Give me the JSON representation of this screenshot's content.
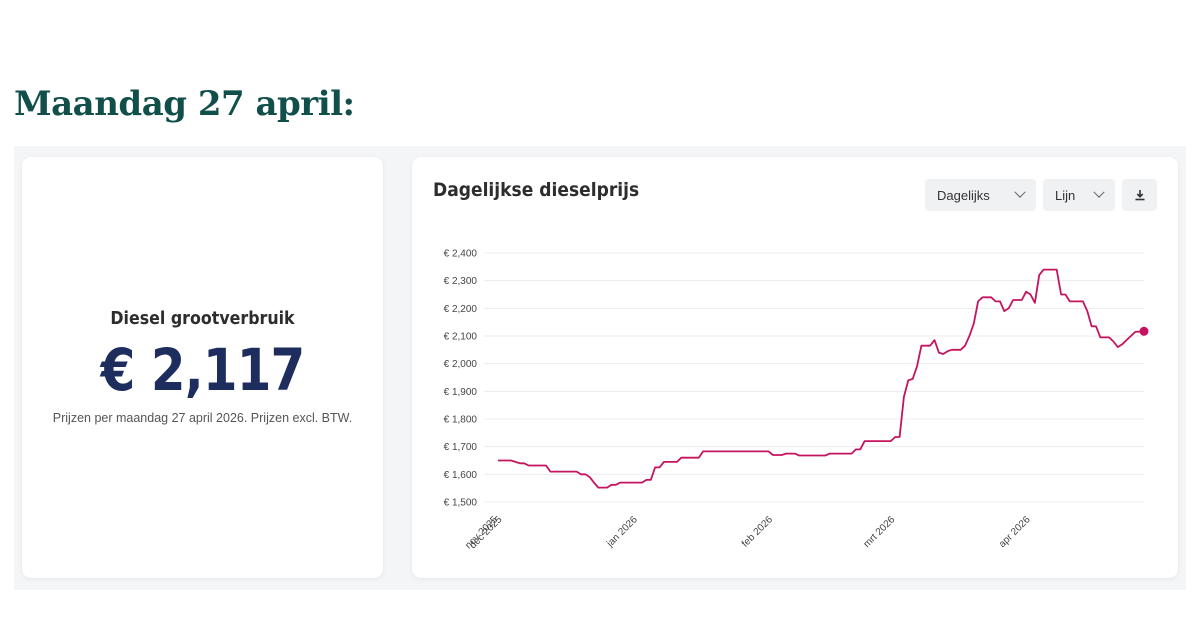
{
  "heading": "Maandag 27 april:",
  "kpi": {
    "label": "Diesel grootverbruik",
    "value": "€ 2,117",
    "note": "Prijzen per maandag 27 april 2026. Prijzen excl. BTW."
  },
  "controls": {
    "period": "Dagelijks",
    "chart_type": "Lijn",
    "download_icon": "download-icon"
  },
  "colors": {
    "heading": "#114f4a",
    "kpi": "#1d2d5e",
    "line": "#c5145f"
  },
  "chart_data": {
    "type": "line",
    "title": "Dagelijkse dieselprijs",
    "xlabel": "",
    "ylabel": "",
    "ylim": [
      1500,
      2400
    ],
    "yticks": [
      2400,
      2300,
      2200,
      2100,
      2000,
      1900,
      1800,
      1700,
      1600,
      1500
    ],
    "ytick_labels": [
      "€ 2,400",
      "€ 2,300",
      "€ 2,200",
      "€ 2,100",
      "€ 2,000",
      "€ 1,900",
      "€ 1,800",
      "€ 1,700",
      "€ 1,600",
      "€ 1,500"
    ],
    "xticks": [
      {
        "label": "nov 2025",
        "date": "2025-11-30"
      },
      {
        "label": "dec 2025",
        "date": "2025-12-01"
      },
      {
        "label": "jan 2026",
        "date": "2026-01-01"
      },
      {
        "label": "feb 2026",
        "date": "2026-02-01"
      },
      {
        "label": "mrt 2026",
        "date": "2026-03-01"
      },
      {
        "label": "apr 2026",
        "date": "2026-04-01"
      }
    ],
    "grid": true,
    "legend": "none",
    "series": [
      {
        "points": [
          [
            "2025-11-30",
            1650
          ],
          [
            "2025-12-01",
            1650
          ],
          [
            "2025-12-03",
            1650
          ],
          [
            "2025-12-04",
            1645
          ],
          [
            "2025-12-05",
            1640
          ],
          [
            "2025-12-06",
            1640
          ],
          [
            "2025-12-07",
            1632
          ],
          [
            "2025-12-11",
            1632
          ],
          [
            "2025-12-12",
            1610
          ],
          [
            "2025-12-18",
            1610
          ],
          [
            "2025-12-19",
            1600
          ],
          [
            "2025-12-20",
            1600
          ],
          [
            "2025-12-21",
            1590
          ],
          [
            "2025-12-22",
            1570
          ],
          [
            "2025-12-23",
            1552
          ],
          [
            "2025-12-25",
            1552
          ],
          [
            "2025-12-26",
            1562
          ],
          [
            "2025-12-27",
            1562
          ],
          [
            "2025-12-28",
            1570
          ],
          [
            "2026-01-02",
            1570
          ],
          [
            "2026-01-03",
            1580
          ],
          [
            "2026-01-04",
            1580
          ],
          [
            "2026-01-05",
            1625
          ],
          [
            "2026-01-06",
            1625
          ],
          [
            "2026-01-07",
            1645
          ],
          [
            "2026-01-10",
            1645
          ],
          [
            "2026-01-11",
            1660
          ],
          [
            "2026-01-15",
            1660
          ],
          [
            "2026-01-16",
            1683
          ],
          [
            "2026-01-31",
            1683
          ],
          [
            "2026-02-01",
            1670
          ],
          [
            "2026-02-03",
            1670
          ],
          [
            "2026-02-04",
            1675
          ],
          [
            "2026-02-06",
            1675
          ],
          [
            "2026-02-07",
            1668
          ],
          [
            "2026-02-13",
            1668
          ],
          [
            "2026-02-14",
            1675
          ],
          [
            "2026-02-19",
            1675
          ],
          [
            "2026-02-20",
            1690
          ],
          [
            "2026-02-21",
            1690
          ],
          [
            "2026-02-22",
            1720
          ],
          [
            "2026-02-28",
            1720
          ],
          [
            "2026-03-01",
            1735
          ],
          [
            "2026-03-02",
            1735
          ],
          [
            "2026-03-03",
            1880
          ],
          [
            "2026-03-04",
            1940
          ],
          [
            "2026-03-05",
            1945
          ],
          [
            "2026-03-06",
            1990
          ],
          [
            "2026-03-07",
            2065
          ],
          [
            "2026-03-09",
            2065
          ],
          [
            "2026-03-10",
            2085
          ],
          [
            "2026-03-11",
            2040
          ],
          [
            "2026-03-12",
            2035
          ],
          [
            "2026-03-13",
            2045
          ],
          [
            "2026-03-14",
            2050
          ],
          [
            "2026-03-16",
            2050
          ],
          [
            "2026-03-17",
            2065
          ],
          [
            "2026-03-18",
            2100
          ],
          [
            "2026-03-19",
            2145
          ],
          [
            "2026-03-20",
            2225
          ],
          [
            "2026-03-21",
            2240
          ],
          [
            "2026-03-23",
            2240
          ],
          [
            "2026-03-24",
            2225
          ],
          [
            "2026-03-25",
            2225
          ],
          [
            "2026-03-26",
            2190
          ],
          [
            "2026-03-27",
            2200
          ],
          [
            "2026-03-28",
            2230
          ],
          [
            "2026-03-30",
            2230
          ],
          [
            "2026-03-31",
            2260
          ],
          [
            "2026-04-01",
            2250
          ],
          [
            "2026-04-02",
            2220
          ],
          [
            "2026-04-03",
            2320
          ],
          [
            "2026-04-04",
            2340
          ],
          [
            "2026-04-07",
            2340
          ],
          [
            "2026-04-08",
            2250
          ],
          [
            "2026-04-09",
            2250
          ],
          [
            "2026-04-10",
            2225
          ],
          [
            "2026-04-13",
            2225
          ],
          [
            "2026-04-14",
            2190
          ],
          [
            "2026-04-15",
            2135
          ],
          [
            "2026-04-16",
            2135
          ],
          [
            "2026-04-17",
            2095
          ],
          [
            "2026-04-19",
            2095
          ],
          [
            "2026-04-20",
            2080
          ],
          [
            "2026-04-21",
            2060
          ],
          [
            "2026-04-22",
            2070
          ],
          [
            "2026-04-23",
            2085
          ],
          [
            "2026-04-24",
            2100
          ],
          [
            "2026-04-25",
            2115
          ],
          [
            "2026-04-27",
            2117
          ]
        ]
      }
    ]
  }
}
